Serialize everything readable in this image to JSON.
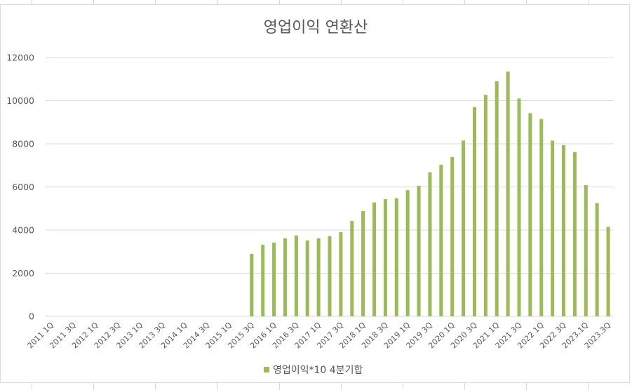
{
  "chart_data": {
    "type": "bar",
    "title": "영업이익 연환산",
    "xlabel": "",
    "ylabel": "",
    "ylim": [
      0,
      12000
    ],
    "yticks": [
      0,
      2000,
      4000,
      6000,
      8000,
      10000,
      12000
    ],
    "grid": true,
    "legend_position": "bottom",
    "bar_color": "#9bbb59",
    "categories": [
      "2011 1Q",
      "2011 2Q",
      "2011 3Q",
      "2011 4Q",
      "2012 1Q",
      "2012 2Q",
      "2012 3Q",
      "2012 4Q",
      "2013 1Q",
      "2013 2Q",
      "2013 3Q",
      "2013 4Q",
      "2014 1Q",
      "2014 2Q",
      "2014 3Q",
      "2014 4Q",
      "2015 1Q",
      "2015 2Q",
      "2015 3Q",
      "2015 4Q",
      "2016 1Q",
      "2016 2Q",
      "2016 3Q",
      "2016 4Q",
      "2017 1Q",
      "2017 2Q",
      "2017 3Q",
      "2017 4Q",
      "2018 1Q",
      "2018 2Q",
      "2018 3Q",
      "2018 4Q",
      "2019 1Q",
      "2019 2Q",
      "2019 3Q",
      "2019 4Q",
      "2020 1Q",
      "2020 2Q",
      "2020 3Q",
      "2020 4Q",
      "2021 1Q",
      "2021 2Q",
      "2021 3Q",
      "2021 4Q",
      "2022 1Q",
      "2022 2Q",
      "2022 3Q",
      "2022 4Q",
      "2023 1Q",
      "2023 2Q",
      "2023 3Q"
    ],
    "tick_labels": [
      "2011 1Q",
      "2011 3Q",
      "2012 1Q",
      "2012 3Q",
      "2013 1Q",
      "2013 3Q",
      "2014 1Q",
      "2014 3Q",
      "2015 1Q",
      "2015 3Q",
      "2016 1Q",
      "2016 3Q",
      "2017 1Q",
      "2017 3Q",
      "2018 1Q",
      "2018 3Q",
      "2019 1Q",
      "2019 3Q",
      "2020 1Q",
      "2020 3Q",
      "2021 1Q",
      "2021 3Q",
      "2022 1Q",
      "2022 3Q",
      "2023.1Q",
      "2023.3Q"
    ],
    "series": [
      {
        "name": "영업이익*10 4분기합",
        "values": [
          null,
          null,
          null,
          null,
          null,
          null,
          null,
          null,
          null,
          null,
          null,
          null,
          null,
          null,
          null,
          null,
          null,
          null,
          2900,
          3320,
          3420,
          3620,
          3750,
          3520,
          3620,
          3720,
          3900,
          4420,
          4880,
          5280,
          5430,
          5480,
          5850,
          6050,
          6680,
          7030,
          7390,
          8150,
          9700,
          10270,
          10900,
          11350,
          10100,
          9420,
          9150,
          8150,
          7940,
          7620,
          6080,
          5250,
          4150
        ]
      }
    ]
  }
}
